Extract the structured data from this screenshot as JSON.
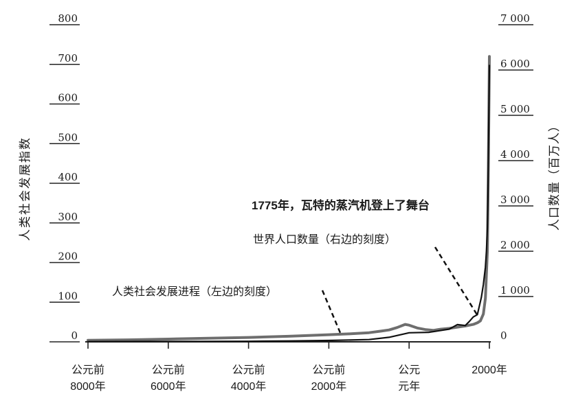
{
  "chart_data": {
    "type": "line",
    "title": "",
    "x_ticks": [
      {
        "value": -8000,
        "label": [
          "公元前",
          "8000年"
        ]
      },
      {
        "value": -6000,
        "label": [
          "公元前",
          "6000年"
        ]
      },
      {
        "value": -4000,
        "label": [
          "公元前",
          "4000年"
        ]
      },
      {
        "value": -2000,
        "label": [
          "公元前",
          "2000年"
        ]
      },
      {
        "value": 0,
        "label": [
          "公元",
          "元年"
        ]
      },
      {
        "value": 2000,
        "label": [
          "2000年"
        ]
      }
    ],
    "xlim": [
      -8000,
      2000
    ],
    "y_left": {
      "label": "人类社会发展指数",
      "ticks": [
        "800",
        "700",
        "600",
        "500",
        "400",
        "300",
        "200",
        "100",
        "0"
      ],
      "lim": [
        0,
        800
      ]
    },
    "y_right": {
      "label": "人口数量（百万人）",
      "ticks": [
        "7 000",
        "6 000",
        "5 000",
        "4 000",
        "3 000",
        "2 000",
        "1 000",
        "0"
      ],
      "lim": [
        0,
        7000
      ]
    },
    "series": [
      {
        "name": "人类社会发展进程（左边的刻度）",
        "axis": "left",
        "color": "#6e6e6e",
        "x": [
          -8000,
          -7000,
          -6000,
          -5000,
          -4000,
          -3000,
          -2000,
          -1500,
          -1000,
          -700,
          -500,
          -300,
          -100,
          0,
          200,
          400,
          600,
          800,
          1000,
          1200,
          1400,
          1600,
          1700,
          1775,
          1850,
          1900,
          1950,
          1975,
          2000
        ],
        "y": [
          4,
          5,
          7,
          9,
          11,
          14,
          18,
          20,
          23,
          27,
          30,
          36,
          44,
          42,
          35,
          31,
          29,
          32,
          34,
          37,
          40,
          44,
          48,
          53,
          70,
          110,
          230,
          440,
          720
        ]
      },
      {
        "name": "世界人口数量（右边的刻度）",
        "axis": "right",
        "color": "#111111",
        "x": [
          -8000,
          -6000,
          -4000,
          -3000,
          -2000,
          -1000,
          -500,
          0,
          500,
          1000,
          1200,
          1400,
          1500,
          1600,
          1700,
          1750,
          1800,
          1850,
          1900,
          1927,
          1950,
          1960,
          1975,
          1987,
          2000
        ],
        "y": [
          5,
          8,
          12,
          20,
          30,
          50,
          100,
          200,
          210,
          280,
          380,
          360,
          450,
          550,
          600,
          790,
          980,
          1260,
          1650,
          2000,
          2520,
          3020,
          4060,
          5000,
          6100
        ]
      }
    ],
    "annotations": [
      {
        "id": "steam",
        "text": "1775年，瓦特的蒸汽机登上了舞台"
      },
      {
        "id": "population",
        "text": "世界人口数量（右边的刻度）",
        "points_to": {
          "x": 1720,
          "axis": "right",
          "y": 560
        }
      },
      {
        "id": "social",
        "text": "人类社会发展进程（左边的刻度）",
        "points_to": {
          "x": -1700,
          "axis": "left",
          "y": 19
        }
      }
    ],
    "grid": false
  }
}
